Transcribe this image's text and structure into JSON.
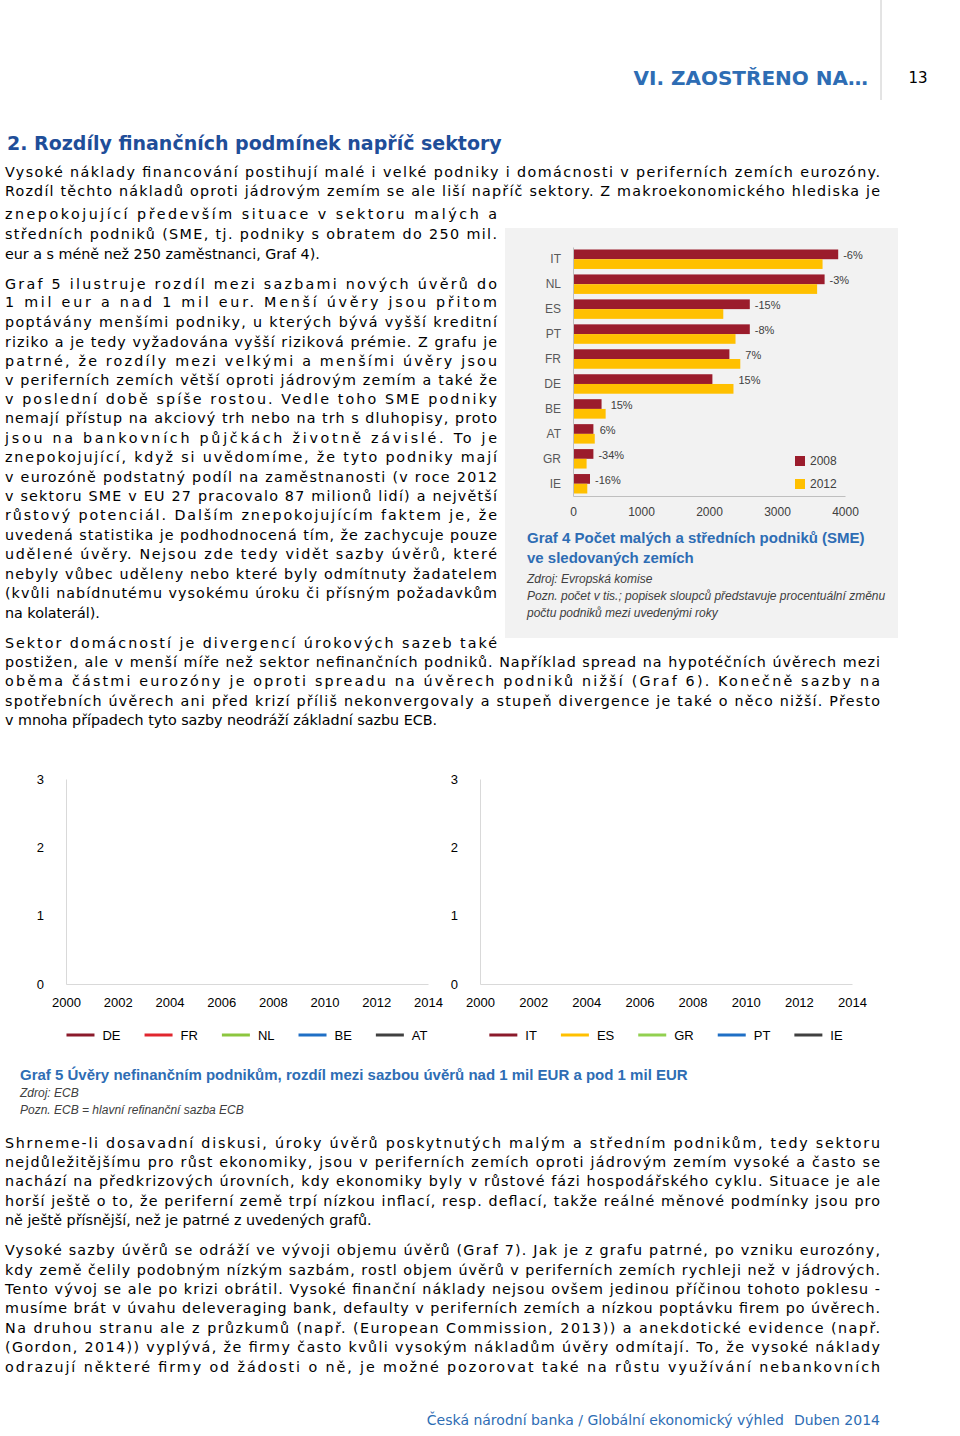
{
  "header": {
    "section": "VI. ZAOSTŘENO NA…",
    "page": "13"
  },
  "section_title": "2. Rozdíly finančních podmínek napříč sektory",
  "paragraphs": [
    [
      "Vysoké náklady financování postihují malé i velké podniky i domácnosti v periferních zemích eurozóny.",
      "Rozdíl těchto nákladů oproti jádrovým zemím se ale liší napříč sektory. Z makroekonomického hlediska je",
      "znepokojující především situace v sektoru malých a",
      "středních podniků (SME, tj. podniky s obratem do 250 mil.",
      "eur a s méně než 250 zaměstnanci, Graf 4)."
    ],
    [
      "Graf 5 ilustruje rozdíl mezi sazbami nových úvěrů do",
      "1 mil eur a nad 1 mil eur. Menší úvěry jsou přitom",
      "poptávány menšími podniky, u kterých bývá vyšší kreditní",
      "riziko a je tedy vyžadována vyšší riziková prémie. Z grafu je",
      "patrné, že rozdíly mezi velkými a menšími úvěry jsou",
      "v periferních zemích větší oproti jádrovým zemím a také že",
      "v poslední době spíše rostou. Vedle toho SME podniky",
      "nemají přístup na akciový trh nebo na trh s dluhopisy, proto",
      "jsou na bankovních půjčkách životně závislé. To je",
      "znepokojující, když si uvědomíme, že tyto podniky mají",
      "v eurozóně podstatný podíl na zaměstnanosti (v roce 2012",
      "v sektoru SME v EU 27 pracovalo 87 milionů lidí) a největší",
      "růstový potenciál. Dalším znepokojujícím faktem je, že",
      "uvedená statistika je podhodnocená tím, že zachycuje pouze",
      "udělené úvěry. Nejsou zde tedy vidět sazby úvěrů, které",
      "nebyly vůbec uděleny nebo které byly odmítnuty žadatelem",
      "(kvůli nabídnutému vysokému úroku či přísným požadavkům",
      "na kolaterál)."
    ],
    [
      "Sektor domácností je divergencí úrokových sazeb také",
      "postižen, ale v menší míře než sektor nefinančních podniků. Například spread na hypotéčních úvěrech mezi",
      "oběma částmi eurozóny je oproti spreadu na úvěrech podniků nižší (Graf 6). Konečně sazby na",
      "spotřebních úvěrech ani před krizí příliš nekonvergovaly a stupeň divergence je také o něco nižší. Přesto",
      "v mnoha případech tyto sazby neodráží základní sazbu ECB."
    ],
    [
      "Shrneme-li dosavadní diskusi, úroky úvěrů poskytnutých malým a středním podnikům, tedy sektoru",
      "nejdůležitějšímu pro růst ekonomiky, jsou v periferních zemích oproti jádrovým zemím vysoké a často se",
      "nachází na předkrizových úrovních, kdy ekonomiky byly v růstové fázi hospodářského cyklu. Situace je ale",
      "horší ještě o to, že periferní země trpí nízkou inflací, resp. deflací, takže reálné měnové podmínky jsou pro",
      "ně ještě přísnější, než je patrné z uvedených grafů."
    ],
    [
      "Vysoké sazby úvěrů se odráží ve vývoji objemu úvěrů (Graf 7). Jak je z grafu patrné, po vzniku eurozóny,",
      "kdy země čelily podobným nízkým sazbám, rostl objem úvěrů v periferních zemích rychleji než v jádrových.",
      "Tento vývoj se ale po krizi obrátil. Vysoké finanční náklady nejsou ovšem jedinou příčinou tohoto poklesu -",
      "musíme brát v úvahu deleveraging bank, defaulty v periferních zemích a nízkou poptávku firem po úvěrech.",
      "Na druhou stranu ale z průzkumů (např. (European Commission, 2013)) a anekdotické evidence (např.",
      "(Gordon, 2014)) vyplývá, že firmy často kvůli vysokým nákladům úvěry odmítají. To, že vysoké náklady",
      "odrazují některé firmy od žádosti o ně, je možné pozorovat také na růstu využívání nebankovních"
    ]
  ],
  "figure5": {
    "title": "Graf 5 Úvěry nefinančním podnikům, rozdíl mezi sazbou úvěrů nad 1 mil EUR a pod 1 mil EUR",
    "source": "Zdroj: ECB",
    "note": "Pozn. ECB = hlavní refinanční sazba ECB"
  },
  "footer": [
    "Česká národní banka / Globální ekonomický výhled",
    "Duben 2014"
  ],
  "chart_data": [
    {
      "type": "bar",
      "orientation": "horizontal",
      "title": "Graf 4 Počet malých a středních podniků (SME) ve sledovaných zemích",
      "source": "Zdroj: Evropská komise",
      "note": "Pozn. počet v tis.; popisek sloupců představuje procentuální změnu počtu podniků mezi uvedenými roky",
      "categories": [
        "IT",
        "NL",
        "ES",
        "PT",
        "FR",
        "DE",
        "BE",
        "AT",
        "GR",
        "IE"
      ],
      "series": [
        {
          "name": "2008",
          "color": "#9b1c2c",
          "values": [
            3900,
            3700,
            2600,
            2600,
            2300,
            2050,
            420,
            300,
            300,
            250
          ]
        },
        {
          "name": "2012",
          "color": "#ffc000",
          "values": [
            3670,
            3590,
            2210,
            2390,
            2460,
            2360,
            480,
            320,
            200,
            210
          ]
        }
      ],
      "change_labels": [
        "-6%",
        "-3%",
        "-15%",
        "-8%",
        "7%",
        "15%",
        "15%",
        "6%",
        "-34%",
        "-16%"
      ],
      "xlim": [
        0,
        4000
      ],
      "xticks": [
        0,
        1000,
        2000,
        3000,
        4000
      ],
      "legend": "lower right"
    },
    {
      "type": "line",
      "xlim": [
        2000,
        2014
      ],
      "xticks": [
        2000,
        2002,
        2004,
        2006,
        2008,
        2010,
        2012,
        2014
      ],
      "ylim": [
        0,
        3
      ],
      "yticks": [
        0,
        1,
        2,
        3
      ],
      "series": [
        {
          "name": "DE",
          "color": "#8b1a2b",
          "values": []
        },
        {
          "name": "FR",
          "color": "#e0262f",
          "values": []
        },
        {
          "name": "NL",
          "color": "#8cc63f",
          "values": []
        },
        {
          "name": "BE",
          "color": "#1f6fc5",
          "values": []
        },
        {
          "name": "AT",
          "color": "#404040",
          "values": []
        }
      ],
      "legend": "bottom"
    },
    {
      "type": "line",
      "xlim": [
        2000,
        2014
      ],
      "xticks": [
        2000,
        2002,
        2004,
        2006,
        2008,
        2010,
        2012,
        2014
      ],
      "ylim": [
        0,
        3
      ],
      "yticks": [
        0,
        1,
        2,
        3
      ],
      "series": [
        {
          "name": "IT",
          "color": "#8b1a2b",
          "values": []
        },
        {
          "name": "ES",
          "color": "#ffc000",
          "values": []
        },
        {
          "name": "GR",
          "color": "#92d050",
          "values": []
        },
        {
          "name": "PT",
          "color": "#1f6fc5",
          "values": []
        },
        {
          "name": "IE",
          "color": "#404040",
          "values": []
        }
      ],
      "legend": "bottom"
    }
  ]
}
